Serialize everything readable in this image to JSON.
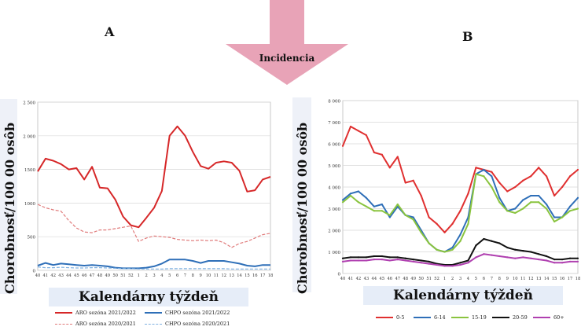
{
  "panels": {
    "a_label": "A",
    "b_label": "B"
  },
  "arrow": {
    "label": "Incidencia",
    "color": "#e8a3b7"
  },
  "chart_data": [
    {
      "type": "line",
      "ylabel": "Chorobnosť/100 00 osôb",
      "xlabel": "Kalendárny týždeň",
      "ylim": [
        0,
        2500
      ],
      "yticks": [
        "0",
        "500",
        "1000",
        "1500",
        "2 000",
        "2 500"
      ],
      "ytick_values": [
        0,
        500,
        1000,
        1500,
        2000,
        2500
      ],
      "x": [
        "40",
        "41",
        "42",
        "43",
        "44",
        "45",
        "46",
        "47",
        "48",
        "49",
        "50",
        "51",
        "52",
        "1",
        "2",
        "3",
        "4",
        "5",
        "6",
        "7",
        "8",
        "9",
        "10",
        "11",
        "12",
        "13",
        "14",
        "15",
        "16",
        "17",
        "18"
      ],
      "grid": true,
      "legend_position": "bottom",
      "series": [
        {
          "name": "ARO sezóna 2021/2022",
          "color": "#d62728",
          "dash": false,
          "values": [
            1470,
            1660,
            1630,
            1580,
            1500,
            1520,
            1350,
            1540,
            1230,
            1220,
            1050,
            800,
            670,
            640,
            780,
            930,
            1180,
            2000,
            2140,
            2000,
            1760,
            1550,
            1510,
            1600,
            1620,
            1600,
            1480,
            1170,
            1190,
            1350,
            1390
          ]
        },
        {
          "name": "CHPO sezóna 2021/2022",
          "color": "#2e6fb8",
          "dash": false,
          "values": [
            70,
            110,
            80,
            100,
            90,
            80,
            70,
            80,
            70,
            60,
            40,
            30,
            30,
            30,
            40,
            60,
            100,
            160,
            160,
            160,
            140,
            110,
            140,
            140,
            140,
            120,
            100,
            70,
            60,
            80,
            80
          ]
        },
        {
          "name": "ARO sezóna 2020/2021",
          "color": "#e07a7a",
          "dash": true,
          "values": [
            980,
            930,
            900,
            880,
            740,
            630,
            570,
            560,
            600,
            600,
            620,
            640,
            660,
            430,
            480,
            510,
            500,
            490,
            460,
            450,
            440,
            450,
            440,
            450,
            410,
            340,
            400,
            430,
            480,
            530,
            550
          ]
        },
        {
          "name": "CHPO sezóna 2020/2021",
          "color": "#7fb0e0",
          "dash": true,
          "values": [
            50,
            40,
            40,
            45,
            40,
            35,
            35,
            40,
            40,
            35,
            30,
            25,
            25,
            20,
            20,
            20,
            20,
            25,
            25,
            25,
            25,
            25,
            25,
            25,
            25,
            20,
            20,
            20,
            20,
            20,
            20
          ]
        }
      ]
    },
    {
      "type": "line",
      "ylabel": "Chorobnosť/100 00 osôb",
      "xlabel": "Kalendárny týždeň",
      "ylim": [
        0,
        8000
      ],
      "yticks": [
        "0",
        "1 000",
        "2 000",
        "3 000",
        "4 000",
        "5 000",
        "6 000",
        "7 000",
        "8 000"
      ],
      "ytick_values": [
        0,
        1000,
        2000,
        3000,
        4000,
        5000,
        6000,
        7000,
        8000
      ],
      "x": [
        "40",
        "41",
        "42",
        "43",
        "44",
        "45",
        "46",
        "47",
        "48",
        "49",
        "50",
        "51",
        "52",
        "1",
        "2",
        "3",
        "4",
        "5",
        "6",
        "7",
        "8",
        "9",
        "10",
        "11",
        "12",
        "13",
        "14",
        "15",
        "16",
        "17",
        "18"
      ],
      "grid": true,
      "legend_position": "bottom",
      "series": [
        {
          "name": "0-5",
          "color": "#e03030",
          "values": [
            5900,
            6800,
            6600,
            6400,
            5600,
            5500,
            4900,
            5400,
            4200,
            4300,
            3600,
            2600,
            2300,
            1900,
            2300,
            2900,
            3700,
            4900,
            4800,
            4700,
            4200,
            3800,
            4000,
            4300,
            4500,
            4900,
            4500,
            3600,
            4000,
            4500,
            4800
          ]
        },
        {
          "name": "6-14",
          "color": "#2f6fb8",
          "values": [
            3400,
            3700,
            3800,
            3500,
            3100,
            3200,
            2600,
            3100,
            2700,
            2600,
            2000,
            1400,
            1100,
            1000,
            1200,
            1800,
            2600,
            4600,
            4800,
            4500,
            3500,
            2900,
            3000,
            3400,
            3600,
            3600,
            3200,
            2600,
            2600,
            3100,
            3500
          ]
        },
        {
          "name": "15-19",
          "color": "#8ac43f",
          "values": [
            3300,
            3600,
            3300,
            3100,
            2900,
            2900,
            2700,
            3200,
            2700,
            2500,
            1900,
            1400,
            1100,
            1000,
            1100,
            1500,
            2300,
            4600,
            4500,
            4000,
            3300,
            2900,
            2800,
            3000,
            3300,
            3300,
            3000,
            2400,
            2600,
            2900,
            3000
          ]
        },
        {
          "name": "20-59",
          "color": "#111111",
          "values": [
            700,
            750,
            750,
            750,
            800,
            800,
            750,
            750,
            700,
            650,
            600,
            550,
            450,
            400,
            400,
            500,
            600,
            1300,
            1600,
            1500,
            1400,
            1200,
            1100,
            1050,
            1000,
            900,
            800,
            650,
            650,
            700,
            700
          ]
        },
        {
          "name": "60+",
          "color": "#b040b0",
          "values": [
            550,
            600,
            600,
            600,
            650,
            650,
            600,
            650,
            600,
            550,
            500,
            450,
            400,
            350,
            350,
            400,
            500,
            750,
            900,
            850,
            800,
            750,
            700,
            750,
            700,
            650,
            600,
            500,
            500,
            550,
            550
          ]
        }
      ]
    }
  ]
}
